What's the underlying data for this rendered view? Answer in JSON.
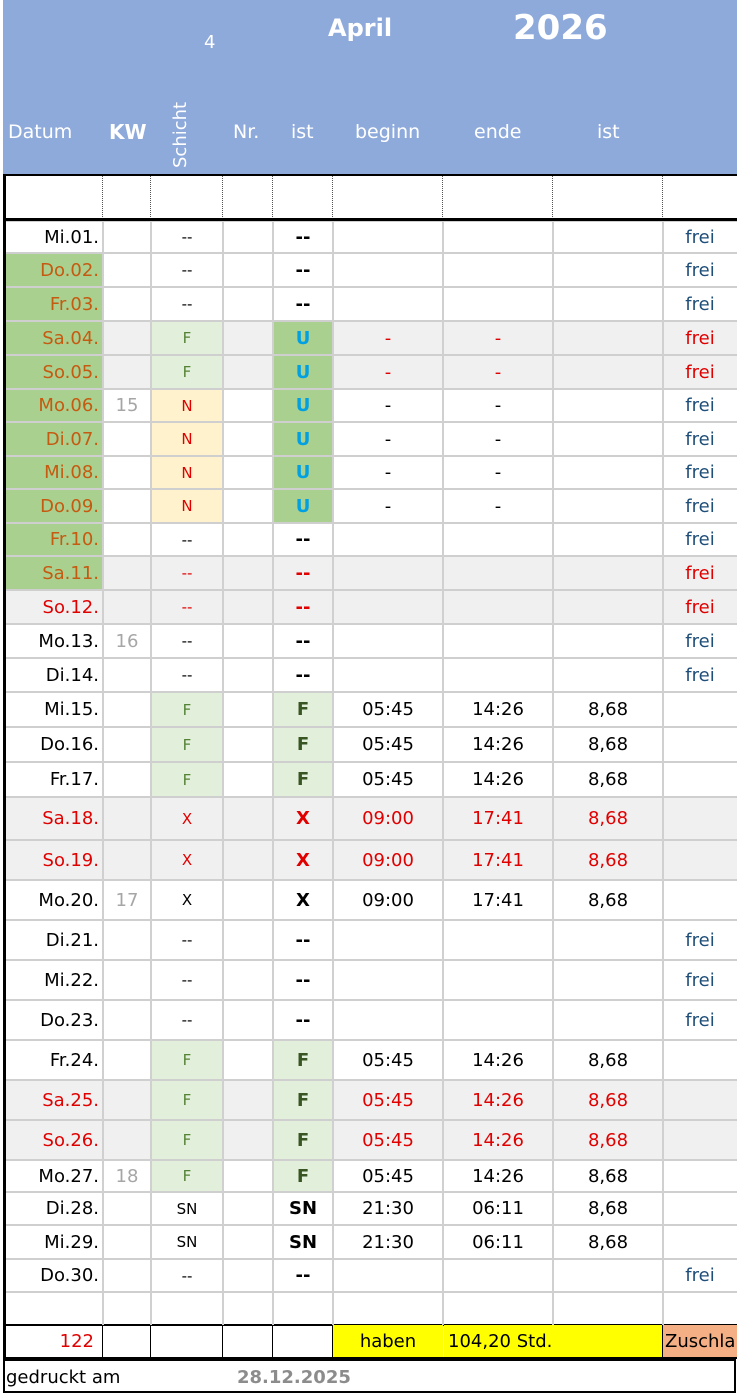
{
  "header": {
    "number": "4",
    "month": "April",
    "year": "2026",
    "columns": [
      "Datum",
      "KW",
      "Schicht",
      "Nr.",
      "ist",
      "beginn",
      "ende",
      "ist"
    ]
  },
  "rows": [
    {
      "date": "Mi.01.",
      "kw": "",
      "schicht": "--",
      "ist": "--",
      "beginn": "",
      "ende": "",
      "hours": "",
      "frei": "frei",
      "dateColor": "black",
      "bg": "white",
      "dateBg": "",
      "schichtBg": "",
      "istBg": "",
      "valColor": "black",
      "freiColor": "blue",
      "istColor": "black",
      "schichtColor": "black"
    },
    {
      "date": "Do.02.",
      "kw": "",
      "schicht": "--",
      "ist": "--",
      "beginn": "",
      "ende": "",
      "hours": "",
      "frei": "frei",
      "dateColor": "brown",
      "bg": "white",
      "dateBg": "green",
      "schichtBg": "",
      "istBg": "",
      "valColor": "black",
      "freiColor": "blue",
      "istColor": "black",
      "schichtColor": "black"
    },
    {
      "date": "Fr.03.",
      "kw": "",
      "schicht": "--",
      "ist": "--",
      "beginn": "",
      "ende": "",
      "hours": "",
      "frei": "frei",
      "dateColor": "brown",
      "bg": "white",
      "dateBg": "green",
      "schichtBg": "",
      "istBg": "",
      "valColor": "black",
      "freiColor": "blue",
      "istColor": "black",
      "schichtColor": "black"
    },
    {
      "date": "Sa.04.",
      "kw": "",
      "schicht": "F",
      "ist": "U",
      "beginn": "-",
      "ende": "-",
      "hours": "",
      "frei": "frei",
      "dateColor": "brown",
      "bg": "gray",
      "dateBg": "green",
      "schichtBg": "lightgreen",
      "istBg": "green",
      "valColor": "red",
      "freiColor": "red",
      "istColor": "cyan",
      "schichtColor": "green"
    },
    {
      "date": "So.05.",
      "kw": "",
      "schicht": "F",
      "ist": "U",
      "beginn": "-",
      "ende": "-",
      "hours": "",
      "frei": "frei",
      "dateColor": "brown",
      "bg": "gray",
      "dateBg": "green",
      "schichtBg": "lightgreen",
      "istBg": "green",
      "valColor": "red",
      "freiColor": "red",
      "istColor": "cyan",
      "schichtColor": "green"
    },
    {
      "date": "Mo.06.",
      "kw": "15",
      "schicht": "N",
      "ist": "U",
      "beginn": "-",
      "ende": "-",
      "hours": "",
      "frei": "frei",
      "dateColor": "brown",
      "bg": "white",
      "dateBg": "green",
      "schichtBg": "peach",
      "istBg": "green",
      "valColor": "black",
      "freiColor": "blue",
      "istColor": "cyan",
      "schichtColor": "red"
    },
    {
      "date": "Di.07.",
      "kw": "",
      "schicht": "N",
      "ist": "U",
      "beginn": "-",
      "ende": "-",
      "hours": "",
      "frei": "frei",
      "dateColor": "brown",
      "bg": "white",
      "dateBg": "green",
      "schichtBg": "peach",
      "istBg": "green",
      "valColor": "black",
      "freiColor": "blue",
      "istColor": "cyan",
      "schichtColor": "red"
    },
    {
      "date": "Mi.08.",
      "kw": "",
      "schicht": "N",
      "ist": "U",
      "beginn": "-",
      "ende": "-",
      "hours": "",
      "frei": "frei",
      "dateColor": "brown",
      "bg": "white",
      "dateBg": "green",
      "schichtBg": "peach",
      "istBg": "green",
      "valColor": "black",
      "freiColor": "blue",
      "istColor": "cyan",
      "schichtColor": "red"
    },
    {
      "date": "Do.09.",
      "kw": "",
      "schicht": "N",
      "ist": "U",
      "beginn": "-",
      "ende": "-",
      "hours": "",
      "frei": "frei",
      "dateColor": "brown",
      "bg": "white",
      "dateBg": "green",
      "schichtBg": "peach",
      "istBg": "green",
      "valColor": "black",
      "freiColor": "blue",
      "istColor": "cyan",
      "schichtColor": "red"
    },
    {
      "date": "Fr.10.",
      "kw": "",
      "schicht": "--",
      "ist": "--",
      "beginn": "",
      "ende": "",
      "hours": "",
      "frei": "frei",
      "dateColor": "brown",
      "bg": "white",
      "dateBg": "green",
      "schichtBg": "",
      "istBg": "",
      "valColor": "black",
      "freiColor": "blue",
      "istColor": "black",
      "schichtColor": "black"
    },
    {
      "date": "Sa.11.",
      "kw": "",
      "schicht": "--",
      "ist": "--",
      "beginn": "",
      "ende": "",
      "hours": "",
      "frei": "frei",
      "dateColor": "brown",
      "bg": "gray",
      "dateBg": "green",
      "schichtBg": "",
      "istBg": "",
      "valColor": "red",
      "freiColor": "red",
      "istColor": "red",
      "schichtColor": "red"
    },
    {
      "date": "So.12.",
      "kw": "",
      "schicht": "--",
      "ist": "--",
      "beginn": "",
      "ende": "",
      "hours": "",
      "frei": "frei",
      "dateColor": "red",
      "bg": "gray",
      "dateBg": "",
      "schichtBg": "",
      "istBg": "",
      "valColor": "red",
      "freiColor": "red",
      "istColor": "red",
      "schichtColor": "red"
    },
    {
      "date": "Mo.13.",
      "kw": "16",
      "schicht": "--",
      "ist": "--",
      "beginn": "",
      "ende": "",
      "hours": "",
      "frei": "frei",
      "dateColor": "black",
      "bg": "white",
      "dateBg": "",
      "schichtBg": "",
      "istBg": "",
      "valColor": "black",
      "freiColor": "blue",
      "istColor": "black",
      "schichtColor": "black"
    },
    {
      "date": "Di.14.",
      "kw": "",
      "schicht": "--",
      "ist": "--",
      "beginn": "",
      "ende": "",
      "hours": "",
      "frei": "frei",
      "dateColor": "black",
      "bg": "white",
      "dateBg": "",
      "schichtBg": "",
      "istBg": "",
      "valColor": "black",
      "freiColor": "blue",
      "istColor": "black",
      "schichtColor": "black"
    },
    {
      "date": "Mi.15.",
      "kw": "",
      "schicht": "F",
      "ist": "F",
      "beginn": "05:45",
      "ende": "14:26",
      "hours": "8,68",
      "frei": "",
      "dateColor": "black",
      "bg": "white",
      "dateBg": "",
      "schichtBg": "lightgreen",
      "istBg": "lightgreen",
      "valColor": "black",
      "freiColor": "blue",
      "istColor": "darkgreen",
      "schichtColor": "green"
    },
    {
      "date": "Do.16.",
      "kw": "",
      "schicht": "F",
      "ist": "F",
      "beginn": "05:45",
      "ende": "14:26",
      "hours": "8,68",
      "frei": "",
      "dateColor": "black",
      "bg": "white",
      "dateBg": "",
      "schichtBg": "lightgreen",
      "istBg": "lightgreen",
      "valColor": "black",
      "freiColor": "blue",
      "istColor": "darkgreen",
      "schichtColor": "green"
    },
    {
      "date": "Fr.17.",
      "kw": "",
      "schicht": "F",
      "ist": "F",
      "beginn": "05:45",
      "ende": "14:26",
      "hours": "8,68",
      "frei": "",
      "dateColor": "black",
      "bg": "white",
      "dateBg": "",
      "schichtBg": "lightgreen",
      "istBg": "lightgreen",
      "valColor": "black",
      "freiColor": "blue",
      "istColor": "darkgreen",
      "schichtColor": "green"
    },
    {
      "date": "Sa.18.",
      "kw": "",
      "schicht": "X",
      "ist": "X",
      "beginn": "09:00",
      "ende": "17:41",
      "hours": "8,68",
      "frei": "",
      "dateColor": "red",
      "bg": "gray",
      "dateBg": "",
      "schichtBg": "",
      "istBg": "",
      "valColor": "red",
      "freiColor": "red",
      "istColor": "red",
      "schichtColor": "red"
    },
    {
      "date": "So.19.",
      "kw": "",
      "schicht": "X",
      "ist": "X",
      "beginn": "09:00",
      "ende": "17:41",
      "hours": "8,68",
      "frei": "",
      "dateColor": "red",
      "bg": "gray",
      "dateBg": "",
      "schichtBg": "",
      "istBg": "",
      "valColor": "red",
      "freiColor": "red",
      "istColor": "red",
      "schichtColor": "red"
    },
    {
      "date": "Mo.20.",
      "kw": "17",
      "schicht": "X",
      "ist": "X",
      "beginn": "09:00",
      "ende": "17:41",
      "hours": "8,68",
      "frei": "",
      "dateColor": "black",
      "bg": "white",
      "dateBg": "",
      "schichtBg": "",
      "istBg": "",
      "valColor": "black",
      "freiColor": "blue",
      "istColor": "black",
      "schichtColor": "black"
    },
    {
      "date": "Di.21.",
      "kw": "",
      "schicht": "--",
      "ist": "--",
      "beginn": "",
      "ende": "",
      "hours": "",
      "frei": "frei",
      "dateColor": "black",
      "bg": "white",
      "dateBg": "",
      "schichtBg": "",
      "istBg": "",
      "valColor": "black",
      "freiColor": "blue",
      "istColor": "black",
      "schichtColor": "black"
    },
    {
      "date": "Mi.22.",
      "kw": "",
      "schicht": "--",
      "ist": "--",
      "beginn": "",
      "ende": "",
      "hours": "",
      "frei": "frei",
      "dateColor": "black",
      "bg": "white",
      "dateBg": "",
      "schichtBg": "",
      "istBg": "",
      "valColor": "black",
      "freiColor": "blue",
      "istColor": "black",
      "schichtColor": "black"
    },
    {
      "date": "Do.23.",
      "kw": "",
      "schicht": "--",
      "ist": "--",
      "beginn": "",
      "ende": "",
      "hours": "",
      "frei": "frei",
      "dateColor": "black",
      "bg": "white",
      "dateBg": "",
      "schichtBg": "",
      "istBg": "",
      "valColor": "black",
      "freiColor": "blue",
      "istColor": "black",
      "schichtColor": "black"
    },
    {
      "date": "Fr.24.",
      "kw": "",
      "schicht": "F",
      "ist": "F",
      "beginn": "05:45",
      "ende": "14:26",
      "hours": "8,68",
      "frei": "",
      "dateColor": "black",
      "bg": "white",
      "dateBg": "",
      "schichtBg": "lightgreen",
      "istBg": "lightgreen",
      "valColor": "black",
      "freiColor": "blue",
      "istColor": "darkgreen",
      "schichtColor": "green"
    },
    {
      "date": "Sa.25.",
      "kw": "",
      "schicht": "F",
      "ist": "F",
      "beginn": "05:45",
      "ende": "14:26",
      "hours": "8,68",
      "frei": "",
      "dateColor": "red",
      "bg": "gray",
      "dateBg": "",
      "schichtBg": "lightgreen",
      "istBg": "lightgreen",
      "valColor": "red",
      "freiColor": "red",
      "istColor": "darkgreen",
      "schichtColor": "green"
    },
    {
      "date": "So.26.",
      "kw": "",
      "schicht": "F",
      "ist": "F",
      "beginn": "05:45",
      "ende": "14:26",
      "hours": "8,68",
      "frei": "",
      "dateColor": "red",
      "bg": "gray",
      "dateBg": "",
      "schichtBg": "lightgreen",
      "istBg": "lightgreen",
      "valColor": "red",
      "freiColor": "red",
      "istColor": "darkgreen",
      "schichtColor": "green"
    },
    {
      "date": "Mo.27.",
      "kw": "18",
      "schicht": "F",
      "ist": "F",
      "beginn": "05:45",
      "ende": "14:26",
      "hours": "8,68",
      "frei": "",
      "dateColor": "black",
      "bg": "white",
      "dateBg": "",
      "schichtBg": "lightgreen",
      "istBg": "lightgreen",
      "valColor": "black",
      "freiColor": "blue",
      "istColor": "darkgreen",
      "schichtColor": "green"
    },
    {
      "date": "Di.28.",
      "kw": "",
      "schicht": "SN",
      "ist": "SN",
      "beginn": "21:30",
      "ende": "06:11",
      "hours": "8,68",
      "frei": "",
      "dateColor": "black",
      "bg": "white",
      "dateBg": "",
      "schichtBg": "",
      "istBg": "",
      "valColor": "black",
      "freiColor": "blue",
      "istColor": "black",
      "schichtColor": "black"
    },
    {
      "date": "Mi.29.",
      "kw": "",
      "schicht": "SN",
      "ist": "SN",
      "beginn": "21:30",
      "ende": "06:11",
      "hours": "8,68",
      "frei": "",
      "dateColor": "black",
      "bg": "white",
      "dateBg": "",
      "schichtBg": "",
      "istBg": "",
      "valColor": "black",
      "freiColor": "blue",
      "istColor": "black",
      "schichtColor": "black"
    },
    {
      "date": "Do.30.",
      "kw": "",
      "schicht": "--",
      "ist": "--",
      "beginn": "",
      "ende": "",
      "hours": "",
      "frei": "frei",
      "dateColor": "black",
      "bg": "white",
      "dateBg": "",
      "schichtBg": "",
      "istBg": "",
      "valColor": "black",
      "freiColor": "blue",
      "istColor": "black",
      "schichtColor": "black"
    }
  ],
  "summary": {
    "count": "122",
    "haben_label": "haben",
    "hours_total": "104,20 Std.",
    "zuschlag": "Zuschla"
  },
  "footer": {
    "printed_label": "gedruckt am",
    "printed_date": "28.12.2025"
  },
  "colors": {
    "header_bg": "#8eaadb",
    "black": "#000000",
    "red": "#e00000",
    "brown": "#c55a11",
    "blue": "#1f4e79",
    "cyan": "#00a0e3",
    "green": "#548235",
    "darkgreen": "#375623",
    "gray": "#f0f0f0",
    "white": "#ffffff",
    "greenBg": "#a9d08e",
    "lightgreenBg": "#e2efda",
    "peachBg": "#fff2cc",
    "yellow": "#ffff00",
    "salmon": "#f4b084",
    "kw": "#a6a6a6"
  }
}
